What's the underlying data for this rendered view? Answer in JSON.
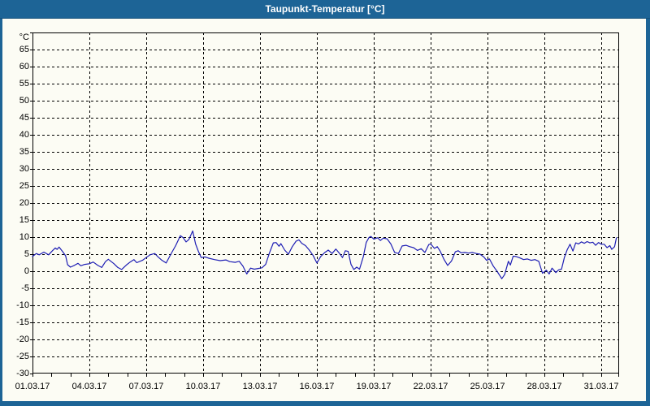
{
  "window": {
    "title": "Taupunkt-Temperatur [°C]"
  },
  "colors": {
    "titlebar_bg": "#1d6496",
    "titlebar_text": "#ffffff",
    "chart_bg": "#fcfcf4",
    "grid": "#000000",
    "axis": "#000000",
    "line": "#1e1eb4"
  },
  "chart_data": {
    "type": "line",
    "title": "Taupunkt-Temperatur [°C]",
    "ylabel": "°C",
    "y_unit_label": "°C",
    "ylim": [
      -30,
      70
    ],
    "y_tick_step": 5,
    "y_tick_labels": [
      "65",
      "60",
      "55",
      "50",
      "45",
      "40",
      "35",
      "30",
      "25",
      "20",
      "15",
      "10",
      "5",
      "0",
      "-5",
      "-10",
      "-15",
      "-20",
      "-25",
      "-30"
    ],
    "x_range_days": [
      0,
      30.94
    ],
    "x_label_days": [
      0,
      3,
      6,
      9,
      12,
      15,
      18,
      21,
      24,
      27,
      30
    ],
    "x_tick_labels": [
      "01.03.17",
      "04.03.17",
      "07.03.17",
      "10.03.17",
      "13.03.17",
      "16.03.17",
      "19.03.17",
      "22.03.17",
      "25.03.17",
      "28.03.17",
      "31.03.17"
    ],
    "x_grid_days": [
      3,
      6,
      9,
      12,
      15,
      18,
      21,
      24,
      27,
      30
    ],
    "x_minor_tick_step_days": 1,
    "grid": "dashed",
    "legend": "none",
    "series": [
      {
        "name": "Taupunkt-Temperatur",
        "x_days": [
          0,
          0.2,
          0.35,
          0.6,
          0.85,
          1.05,
          1.2,
          1.3,
          1.4,
          1.6,
          1.75,
          1.85,
          2.0,
          2.2,
          2.4,
          2.55,
          2.75,
          3.0,
          3.2,
          3.45,
          3.65,
          3.85,
          4.0,
          4.3,
          4.5,
          4.7,
          4.95,
          5.15,
          5.35,
          5.5,
          5.8,
          6.0,
          6.2,
          6.45,
          6.6,
          6.8,
          7.05,
          7.3,
          7.55,
          7.8,
          7.95,
          8.1,
          8.25,
          8.45,
          8.6,
          8.75,
          8.9,
          9.1,
          9.3,
          9.6,
          9.9,
          10.2,
          10.4,
          10.7,
          10.9,
          11.1,
          11.3,
          11.5,
          11.7,
          11.9,
          12.1,
          12.3,
          12.5,
          12.7,
          12.85,
          13.0,
          13.1,
          13.3,
          13.5,
          13.7,
          13.9,
          14.05,
          14.2,
          14.4,
          14.6,
          14.8,
          15.0,
          15.2,
          15.4,
          15.6,
          15.8,
          16.0,
          16.2,
          16.35,
          16.5,
          16.65,
          16.8,
          16.95,
          17.1,
          17.25,
          17.45,
          17.6,
          17.75,
          17.85,
          18.0,
          18.2,
          18.35,
          18.5,
          18.7,
          18.9,
          19.1,
          19.3,
          19.5,
          19.7,
          19.9,
          20.1,
          20.3,
          20.5,
          20.7,
          20.9,
          21.0,
          21.2,
          21.35,
          21.5,
          21.7,
          21.9,
          22.1,
          22.3,
          22.45,
          22.6,
          22.8,
          23.0,
          23.2,
          23.4,
          23.6,
          23.8,
          23.95,
          24.1,
          24.3,
          24.5,
          24.75,
          24.9,
          25.1,
          25.2,
          25.35,
          25.5,
          25.7,
          25.9,
          26.1,
          26.3,
          26.5,
          26.7,
          26.9,
          27.1,
          27.25,
          27.4,
          27.6,
          27.75,
          27.9,
          28.05,
          28.2,
          28.35,
          28.5,
          28.65,
          28.8,
          28.95,
          29.1,
          29.25,
          29.4,
          29.55,
          29.7,
          29.85,
          30.0,
          30.15,
          30.3,
          30.45,
          30.55,
          30.7,
          30.8
        ],
        "values_c": [
          4.3,
          5.2,
          4.8,
          5.6,
          4.8,
          6.0,
          6.8,
          6.4,
          7.1,
          5.7,
          4.5,
          1.9,
          1.2,
          1.7,
          2.3,
          1.6,
          2.0,
          2.2,
          2.7,
          1.7,
          1.1,
          2.8,
          3.5,
          2.2,
          1.1,
          0.5,
          1.8,
          2.7,
          3.4,
          2.5,
          3.2,
          4.0,
          4.8,
          5.2,
          4.3,
          3.3,
          2.4,
          5.0,
          7.5,
          10.4,
          9.8,
          8.6,
          9.3,
          11.8,
          8.0,
          5.8,
          4.0,
          4.2,
          3.8,
          3.4,
          3.1,
          3.3,
          2.8,
          2.6,
          2.9,
          1.5,
          -0.8,
          0.9,
          0.6,
          0.8,
          1.0,
          2.0,
          5.4,
          8.3,
          8.4,
          7.3,
          8.1,
          6.2,
          5.0,
          7.2,
          8.8,
          9.2,
          8.2,
          7.5,
          6.2,
          4.6,
          2.4,
          4.3,
          5.4,
          6.2,
          5.2,
          6.5,
          5.2,
          4.0,
          6.0,
          5.8,
          2.0,
          0.5,
          1.2,
          0.6,
          4.3,
          8.4,
          9.9,
          10.2,
          9.4,
          9.8,
          9.0,
          9.7,
          9.5,
          8.0,
          5.5,
          5.2,
          7.4,
          7.6,
          7.2,
          6.9,
          6.1,
          6.6,
          5.5,
          7.8,
          8.0,
          6.7,
          7.2,
          5.9,
          3.5,
          1.7,
          3.0,
          5.7,
          6.0,
          5.4,
          5.5,
          5.3,
          5.5,
          5.2,
          5.0,
          4.2,
          3.2,
          3.6,
          1.5,
          0.0,
          -2.2,
          -1.0,
          2.9,
          1.8,
          4.4,
          4.3,
          3.9,
          3.4,
          3.6,
          3.2,
          3.4,
          2.9,
          -0.6,
          0.3,
          -0.8,
          0.9,
          -0.4,
          0.4,
          0.6,
          4.0,
          6.3,
          7.9,
          5.9,
          8.3,
          8.0,
          8.6,
          8.2,
          8.7,
          8.3,
          8.5,
          7.6,
          8.4,
          7.9,
          7.9,
          6.9,
          7.5,
          6.4,
          7.2,
          9.8
        ]
      }
    ]
  }
}
